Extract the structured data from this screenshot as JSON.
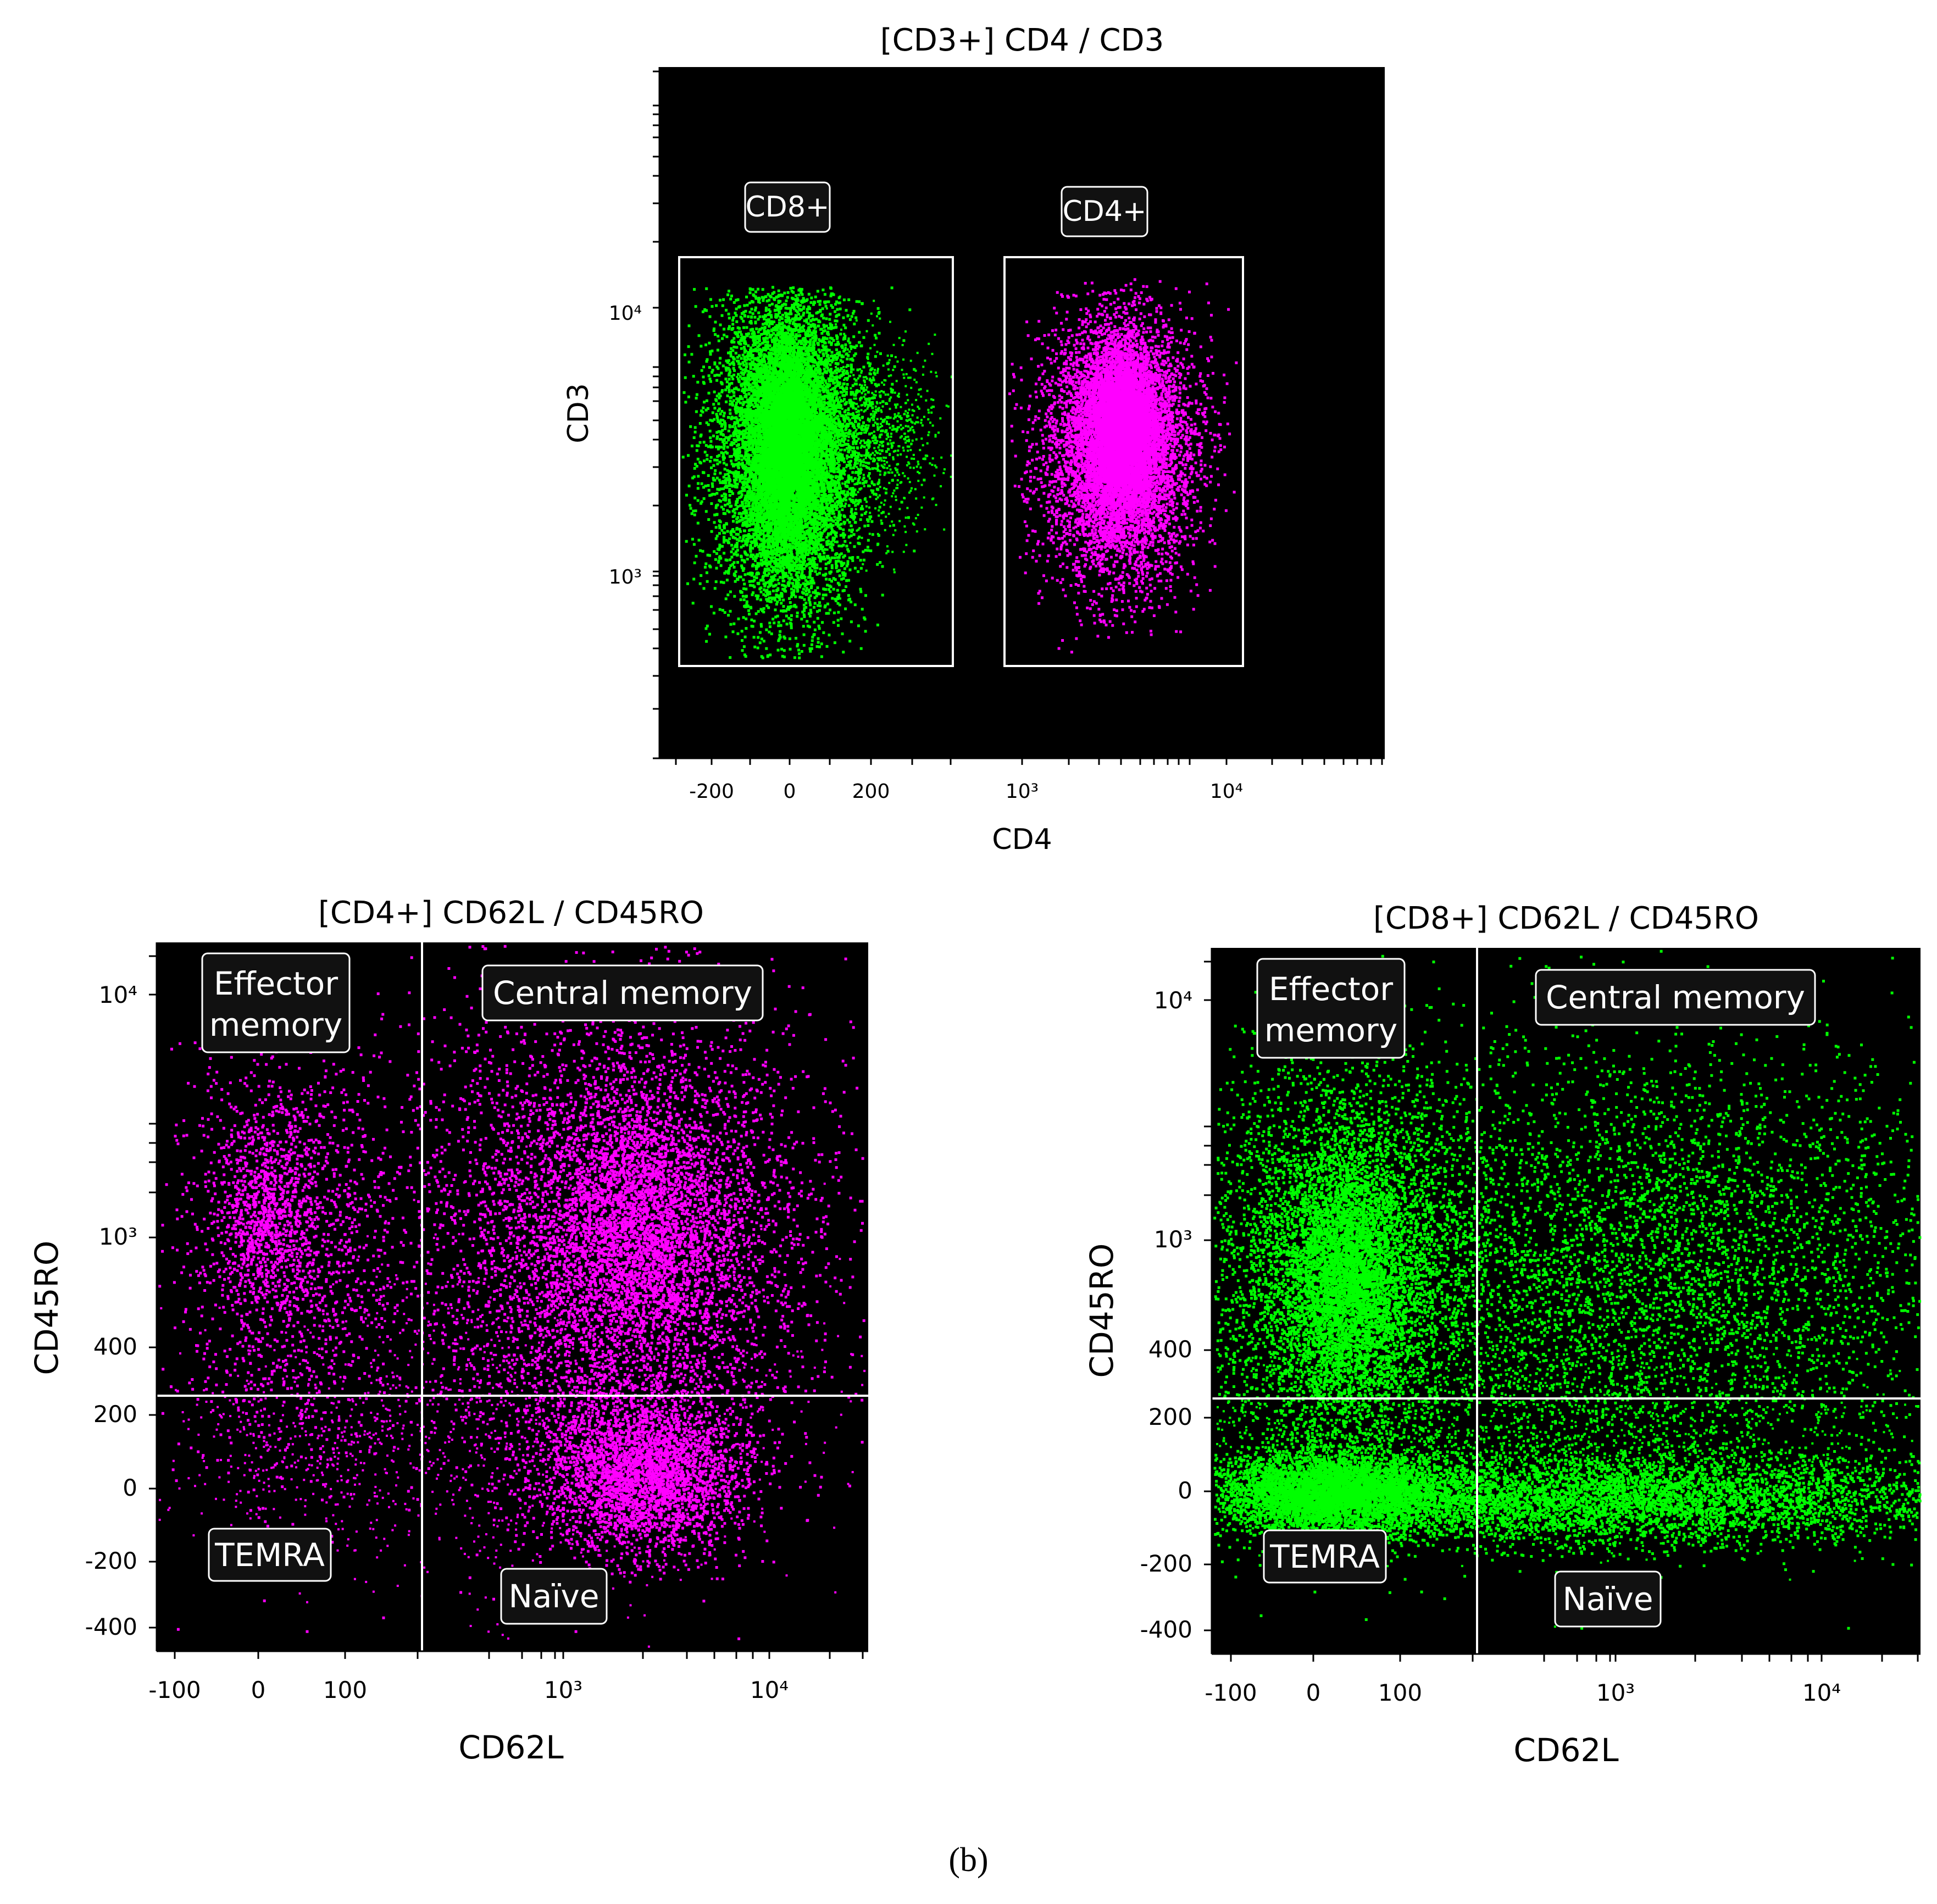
{
  "caption": "(b)",
  "colors": {
    "cd8": "#00ff00",
    "cd4": "#ff00ff",
    "plot_bg": "#000000",
    "gate": "#ffffff"
  },
  "chart_data": [
    {
      "id": "cd4-cd3",
      "type": "scatter",
      "title": "[CD3+] CD4 / CD3",
      "xlabel": "CD4",
      "ylabel": "CD3",
      "x_scale": "biexponential",
      "y_scale": "log",
      "x_ticks": [
        "-200",
        "0",
        "200",
        "10³",
        "10⁴"
      ],
      "y_ticks": [
        "10³",
        "10⁴"
      ],
      "y_range": [
        250,
        70000
      ],
      "grid": false,
      "gates": [
        "CD8+",
        "CD4+"
      ],
      "populations": [
        {
          "color": "#00ff00",
          "x_center": 0,
          "y_center": 2900
        },
        {
          "color": "#ff00ff",
          "x_center": 3000,
          "y_center": 3200
        }
      ]
    },
    {
      "id": "cd4-memory",
      "type": "scatter",
      "title": "[CD4+] CD62L / CD45RO",
      "xlabel": "CD62L",
      "ylabel": "CD45RO",
      "x_scale": "biexponential",
      "y_scale": "biexponential",
      "x_ticks": [
        "-100",
        "0",
        "100",
        "10³",
        "10⁴"
      ],
      "y_ticks": [
        "-400",
        "-200",
        "0",
        "200",
        "400",
        "10³",
        "10⁴"
      ],
      "quadrant_threshold": {
        "x": 250,
        "y": 250
      },
      "quadrants": [
        "Effector memory",
        "Central memory",
        "TEMRA",
        "Naïve"
      ],
      "grid": false,
      "populations": [
        {
          "color": "#ff00ff",
          "x_center": 2500,
          "y_center": 1000
        },
        {
          "color": "#ff00ff",
          "x_center": 20,
          "y_center": 1100
        },
        {
          "color": "#ff00ff",
          "x_center": 2800,
          "y_center": 30
        }
      ]
    },
    {
      "id": "cd8-memory",
      "type": "scatter",
      "title": "[CD8+] CD62L / CD45RO",
      "xlabel": "CD62L",
      "ylabel": "CD45RO",
      "x_scale": "biexponential",
      "y_scale": "biexponential",
      "x_ticks": [
        "-100",
        "0",
        "100",
        "10³",
        "10⁴"
      ],
      "y_ticks": [
        "-400",
        "-200",
        "0",
        "200",
        "400",
        "10³",
        "10⁴"
      ],
      "quadrant_threshold": {
        "x": 250,
        "y": 250
      },
      "quadrants": [
        "Effector memory",
        "Central memory",
        "TEMRA",
        "Naïve"
      ],
      "grid": false,
      "populations": [
        {
          "color": "#00ff00",
          "x_center": 40,
          "y_center": 700
        },
        {
          "color": "#00ff00",
          "x_center": 1500,
          "y_center": 800
        },
        {
          "color": "#00ff00",
          "x_center": 10,
          "y_center": 0
        },
        {
          "color": "#00ff00",
          "x_center": 1500,
          "y_center": 0
        }
      ]
    }
  ]
}
